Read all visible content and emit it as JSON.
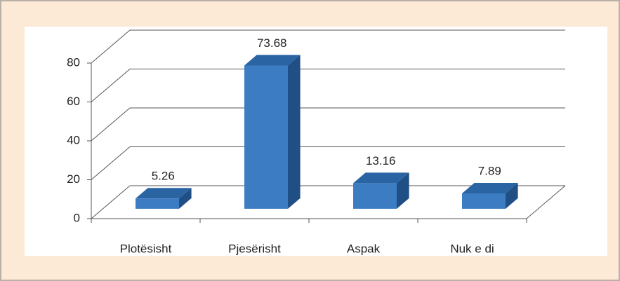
{
  "chart_data": {
    "type": "bar3d",
    "categories": [
      "Plotësisht",
      "Pjesërisht",
      "Aspak",
      "Nuk e di"
    ],
    "values": [
      5.26,
      73.68,
      13.16,
      7.89
    ],
    "color": "#3b7cc2",
    "ylim": [
      0,
      80
    ],
    "yticks": [
      0,
      20,
      40,
      60,
      80
    ],
    "grid": true
  }
}
